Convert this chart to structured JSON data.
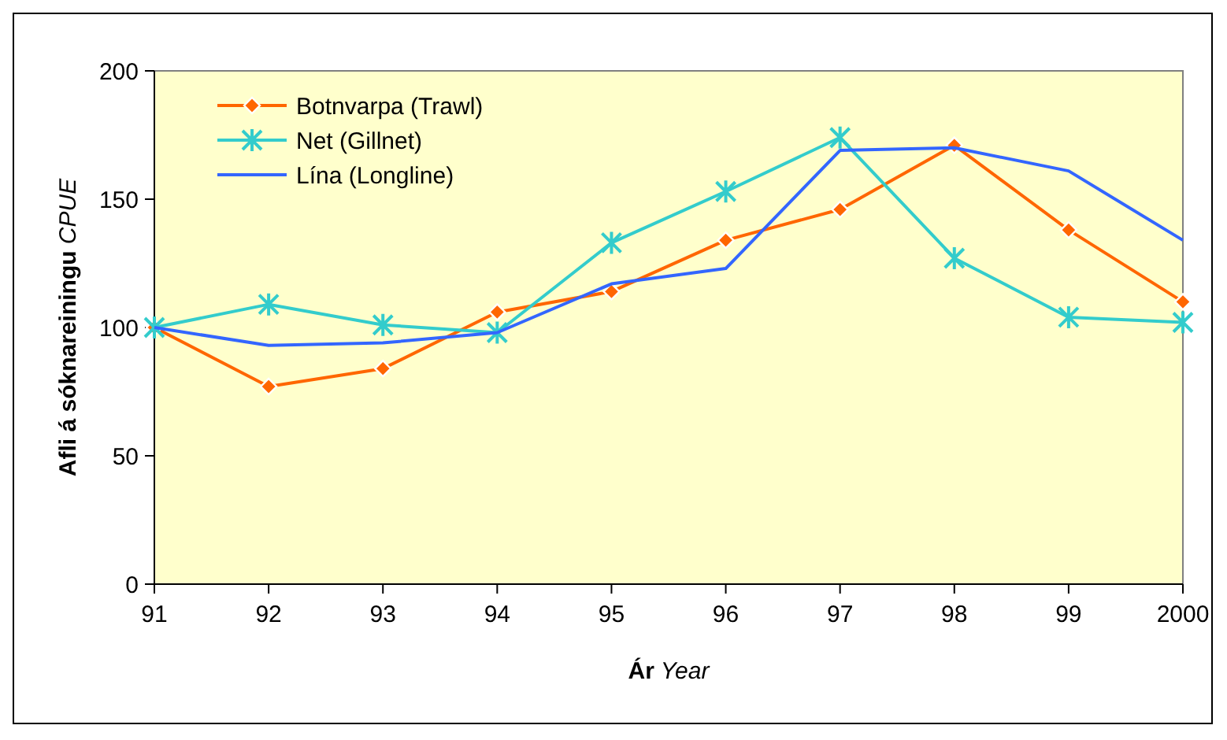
{
  "chart_data": {
    "type": "line",
    "xlabel": "Ár Year",
    "ylabel": "Afli á sóknareiningu CPUE",
    "categories": [
      "91",
      "92",
      "93",
      "94",
      "95",
      "96",
      "97",
      "98",
      "99",
      "2000"
    ],
    "ylim": [
      0,
      200
    ],
    "yticks": [
      0,
      50,
      100,
      150,
      200
    ],
    "grid": false,
    "legend": "top left",
    "series": [
      {
        "name": "Botnvarpa (Trawl)",
        "color": "#ff6600",
        "marker": "diamond",
        "values": [
          100,
          77,
          84,
          106,
          114,
          134,
          146,
          171,
          138,
          110
        ]
      },
      {
        "name": "Net (Gillnet)",
        "color": "#33cccc",
        "marker": "cross",
        "values": [
          100,
          109,
          101,
          98,
          133,
          153,
          174,
          127,
          104,
          102
        ]
      },
      {
        "name": "Lína (Longline)",
        "color": "#3366ff",
        "marker": "none",
        "values": [
          100,
          93,
          94,
          98,
          117,
          123,
          169,
          170,
          161,
          134
        ]
      }
    ]
  }
}
